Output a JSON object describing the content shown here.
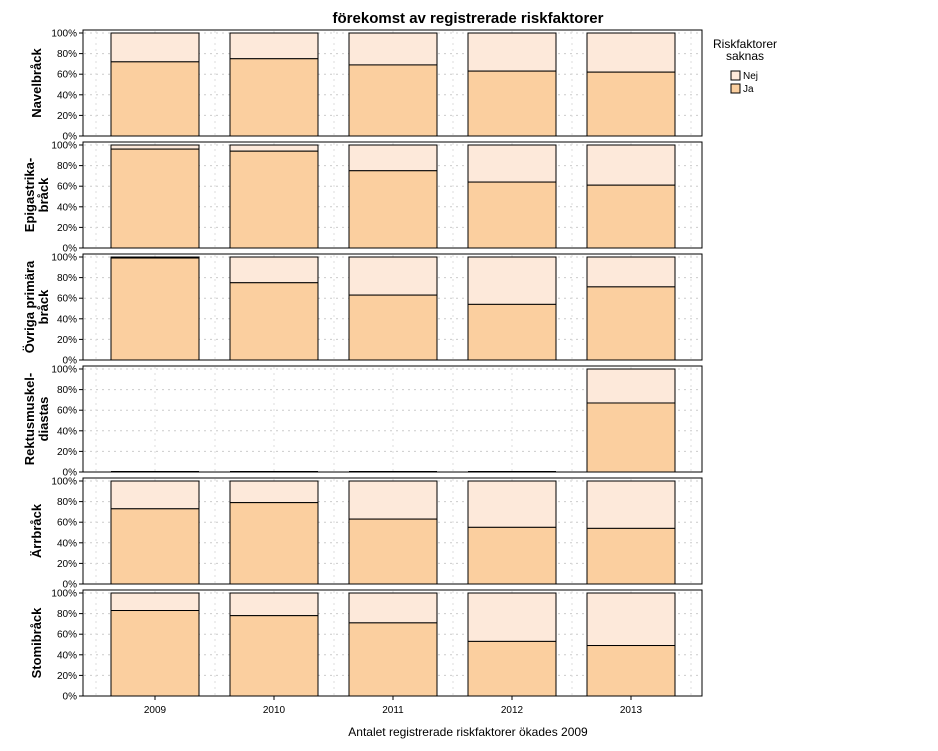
{
  "chart_data": {
    "type": "bar",
    "stacked": true,
    "title": "förekomst av registrerade riskfaktorer",
    "xlabel": "Antalet registrerade riskfaktorer ökades 2009",
    "categories": [
      "2009",
      "2010",
      "2011",
      "2012",
      "2013"
    ],
    "y_ticks": [
      "0%",
      "20%",
      "40%",
      "60%",
      "80%",
      "100%"
    ],
    "ylim": [
      0,
      100
    ],
    "grid": true,
    "legend": {
      "title_lines": [
        "Riskfaktorer",
        "saknas"
      ],
      "position": "top-right",
      "entries": [
        {
          "name": "Nej",
          "color": "#fde9da"
        },
        {
          "name": "Ja",
          "color": "#fbcf9f"
        }
      ]
    },
    "colors": {
      "Ja": "#fbcf9f",
      "Nej": "#fde9da"
    },
    "panels": [
      {
        "label_lines": [
          "Navelbråck"
        ],
        "ja_percent": [
          72,
          75,
          69,
          63,
          62
        ]
      },
      {
        "label_lines": [
          "Epigastrika-",
          "bråck"
        ],
        "ja_percent": [
          96,
          94,
          75,
          64,
          61
        ]
      },
      {
        "label_lines": [
          "Övriga primära",
          "bråck"
        ],
        "ja_percent": [
          99,
          75,
          63,
          54,
          71
        ]
      },
      {
        "label_lines": [
          "Rektusmuskel-",
          "diastas"
        ],
        "ja_percent": [
          null,
          null,
          null,
          null,
          67
        ]
      },
      {
        "label_lines": [
          "Ärrbråck"
        ],
        "ja_percent": [
          73,
          79,
          63,
          55,
          54
        ]
      },
      {
        "label_lines": [
          "Stomibråck"
        ],
        "ja_percent": [
          83,
          78,
          71,
          53,
          49
        ]
      }
    ]
  }
}
